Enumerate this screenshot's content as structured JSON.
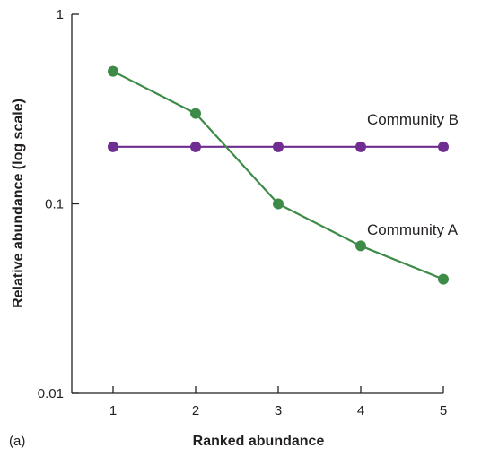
{
  "chart_data": {
    "type": "line",
    "panel_label": "(a)",
    "xlabel": "Ranked abundance",
    "ylabel": "Relative abundance (log scale)",
    "y_scale": "log",
    "ylim": [
      0.01,
      1
    ],
    "xlim": [
      0.5,
      5.1
    ],
    "x": [
      1,
      2,
      3,
      4,
      5
    ],
    "x_ticks": [
      1,
      2,
      3,
      4,
      5
    ],
    "x_tick_labels": [
      "1",
      "2",
      "3",
      "4",
      "5"
    ],
    "y_ticks": [
      1,
      0.1,
      0.01
    ],
    "y_tick_labels": [
      "1",
      "0.1",
      "0.01"
    ],
    "grid": false,
    "series": [
      {
        "name": "Community A",
        "color": "#3d8b47",
        "values": [
          0.5,
          0.3,
          0.1,
          0.06,
          0.04
        ]
      },
      {
        "name": "Community B",
        "color": "#6f2c91",
        "values": [
          0.2,
          0.2,
          0.2,
          0.2,
          0.2
        ]
      }
    ]
  }
}
